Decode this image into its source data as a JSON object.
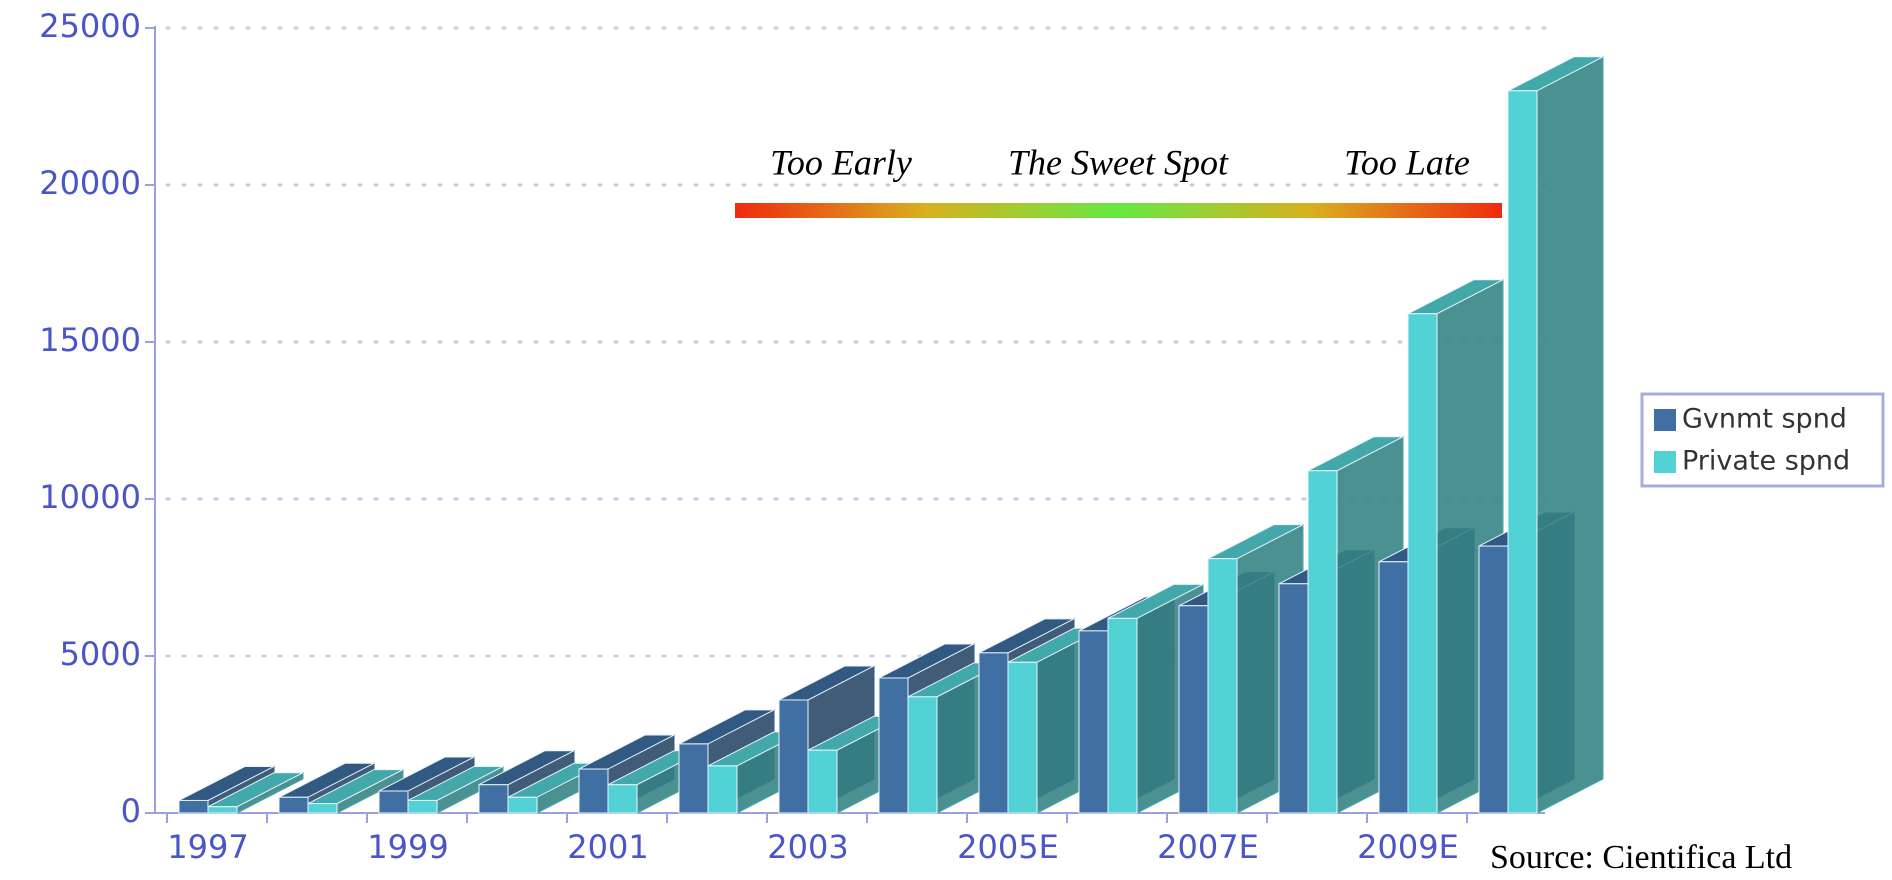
{
  "chart_data": {
    "type": "bar3d",
    "categories": [
      "1997",
      null,
      "1999",
      null,
      "2001",
      null,
      "2003",
      null,
      "2005E",
      null,
      "2007E",
      null,
      "2009E",
      null
    ],
    "series": [
      {
        "name": "Gvnmt spnd",
        "color": "#3f6fa3",
        "values": [
          400,
          500,
          700,
          900,
          1400,
          2200,
          3600,
          4300,
          5100,
          5800,
          6600,
          7300,
          8000,
          8500
        ]
      },
      {
        "name": "Private spnd",
        "color": "#52d2d4",
        "values": [
          200,
          300,
          400,
          500,
          900,
          1500,
          2000,
          3700,
          4800,
          6200,
          8100,
          10900,
          15900,
          23000
        ]
      }
    ],
    "ylim": [
      0,
      25000
    ],
    "yticks": [
      0,
      5000,
      10000,
      15000,
      20000,
      25000
    ],
    "grid": true,
    "annotations": [
      "Too Early",
      "The Sweet Spot",
      "Too Late"
    ],
    "source": "Source: Cientifica Ltd",
    "legend": "right"
  }
}
